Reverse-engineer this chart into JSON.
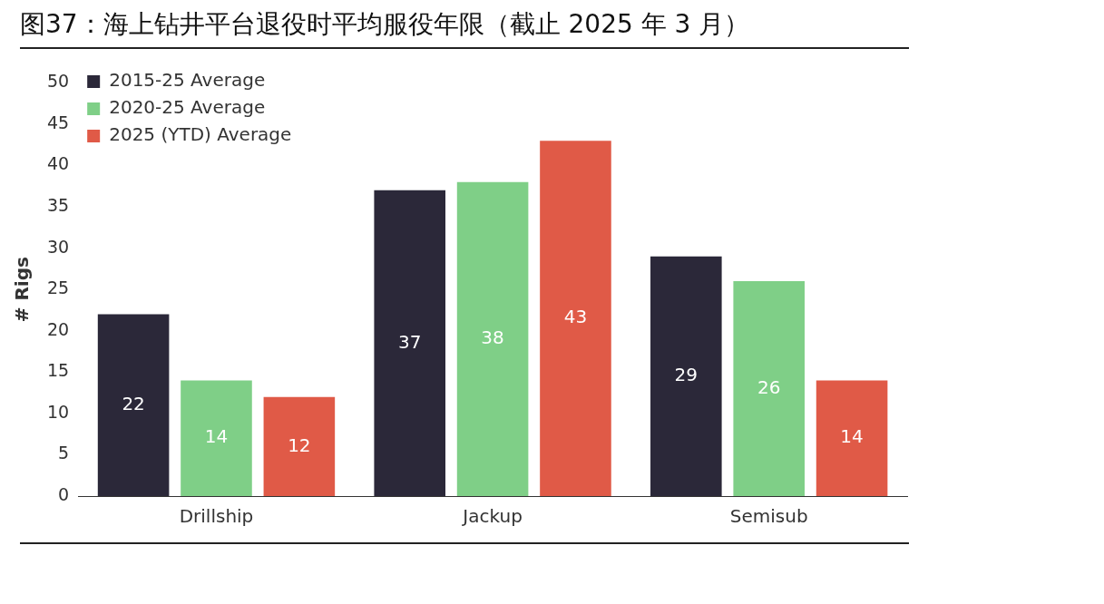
{
  "chart_data": {
    "type": "bar",
    "title": "图37：海上钻井平台退役时平均服役年限（截止 2025 年 3 月）",
    "ylabel": "# Rigs",
    "categories": [
      "Drillship",
      "Jackup",
      "Semisub"
    ],
    "series": [
      {
        "name": "2015-25 Average",
        "color": "#2b2839",
        "values": [
          22,
          37,
          29
        ]
      },
      {
        "name": "2020-25 Average",
        "color": "#7fcf87",
        "values": [
          14,
          38,
          26
        ]
      },
      {
        "name": "2025 (YTD) Average",
        "color": "#e05a47",
        "values": [
          12,
          43,
          14
        ]
      }
    ],
    "ylim": [
      0,
      50
    ],
    "yticks": [
      0,
      5,
      10,
      15,
      20,
      25,
      30,
      35,
      40,
      45,
      50
    ],
    "grid": false,
    "legend": "top left",
    "data_labels": true
  }
}
